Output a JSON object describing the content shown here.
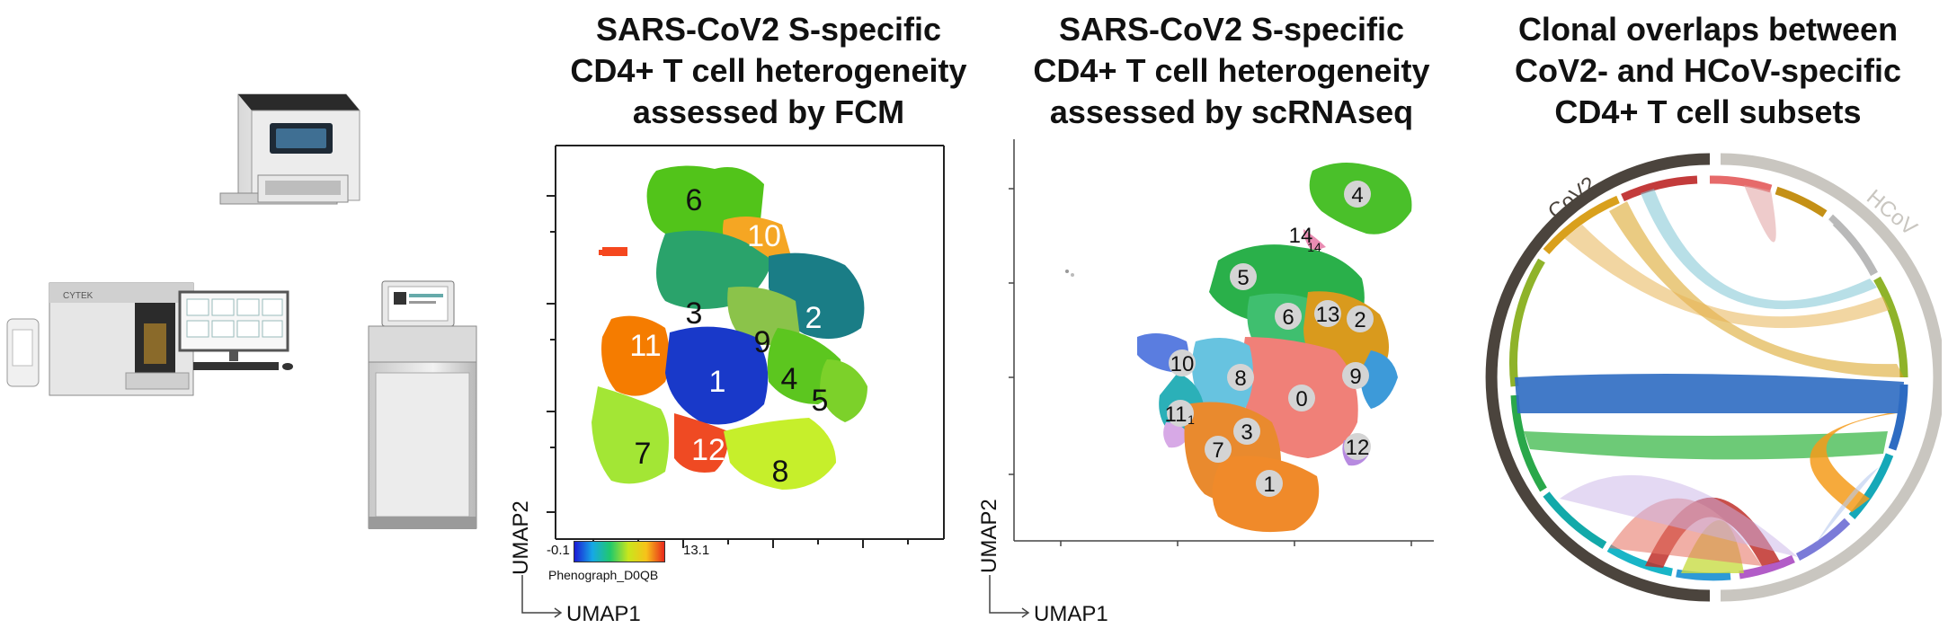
{
  "titles": {
    "fcm": [
      "SARS-CoV2 S-specific",
      "CD4+ T cell heterogeneity",
      "assessed by FCM"
    ],
    "scrna": [
      "SARS-CoV2 S-specific",
      "CD4+ T cell heterogeneity",
      "assessed by scRNAseq"
    ],
    "clonal": [
      "Clonal overlaps between",
      "CoV2- and HCoV-specific",
      "CD4+ T cell subsets"
    ]
  },
  "fcm": {
    "x_axis_label": "UMAP1",
    "y_axis_label": "UMAP2",
    "colorbar": {
      "min": "-0.1",
      "max": "13.1",
      "label": "Phenograph_D0QB"
    },
    "clusters": [
      "6",
      "10",
      "3",
      "2",
      "9",
      "11",
      "4",
      "1",
      "5",
      "7",
      "12",
      "8"
    ]
  },
  "scrna": {
    "x_axis_label": "UMAP1",
    "y_axis_label": "UMAP2",
    "clusters": [
      "4",
      "14",
      "5",
      "6",
      "13",
      "2",
      "10",
      "8",
      "0",
      "9",
      "11",
      "3",
      "7",
      "12",
      "1"
    ],
    "sub_labels": [
      "14",
      "1"
    ]
  },
  "chord": {
    "left_label": "CoV2",
    "right_label": "HCoV",
    "colors": {
      "cov2_arc": "#4b443d",
      "hcov_arc": "#c9c6c0"
    }
  },
  "instrument_icons": [
    "flow-cytometer-icon",
    "cell-sorter-icon",
    "sequencer-icon"
  ]
}
